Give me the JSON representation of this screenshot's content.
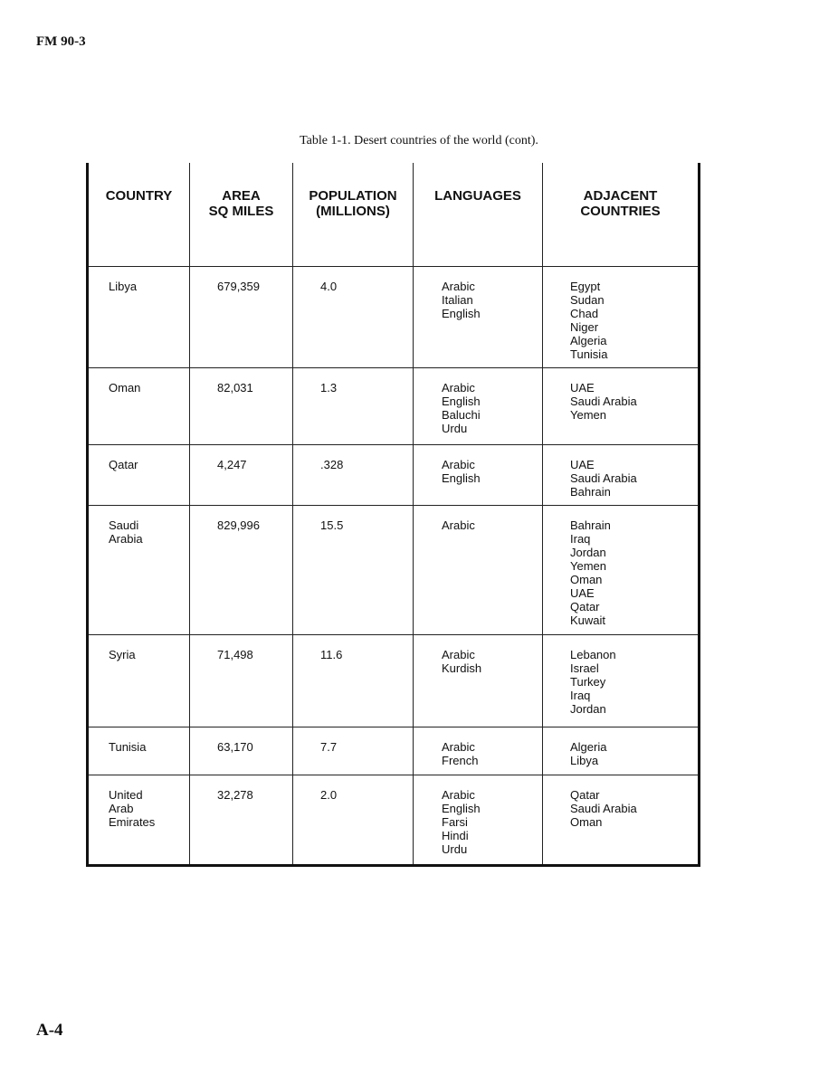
{
  "header": {
    "doc_id": "FM 90-3"
  },
  "caption": "Table 1-1. Desert countries of the world (cont).",
  "columns": [
    "COUNTRY",
    "AREA\nSQ MILES",
    "POPULATION\n(MILLIONS)",
    "LANGUAGES",
    "ADJACENT\nCOUNTRIES"
  ],
  "rows": [
    {
      "country": [
        "Libya"
      ],
      "area": "679,359",
      "population": "4.0",
      "languages": [
        "Arabic",
        "Italian",
        "English"
      ],
      "adjacent": [
        "Egypt",
        "Sudan",
        "Chad",
        "Niger",
        "Algeria",
        "Tunisia"
      ]
    },
    {
      "country": [
        "Oman"
      ],
      "area": "82,031",
      "population": "1.3",
      "languages": [
        "Arabic",
        "English",
        "Baluchi",
        "Urdu"
      ],
      "adjacent": [
        "UAE",
        "Saudi Arabia",
        "Yemen"
      ]
    },
    {
      "country": [
        "Qatar"
      ],
      "area": "4,247",
      "population": ".328",
      "languages": [
        "Arabic",
        "English"
      ],
      "adjacent": [
        "UAE",
        "Saudi Arabia",
        "Bahrain"
      ]
    },
    {
      "country": [
        "Saudi",
        "Arabia"
      ],
      "area": "829,996",
      "population": "15.5",
      "languages": [
        "Arabic"
      ],
      "adjacent": [
        "Bahrain",
        "Iraq",
        "Jordan",
        "Yemen",
        "Oman",
        "UAE",
        "Qatar",
        "Kuwait"
      ]
    },
    {
      "country": [
        "Syria"
      ],
      "area": "71,498",
      "population": "11.6",
      "languages": [
        "Arabic",
        "Kurdish"
      ],
      "adjacent": [
        "Lebanon",
        "Israel",
        "Turkey",
        "Iraq",
        "Jordan"
      ]
    },
    {
      "country": [
        "Tunisia"
      ],
      "area": "63,170",
      "population": "7.7",
      "languages": [
        "Arabic",
        "French"
      ],
      "adjacent": [
        "Algeria",
        "Libya"
      ]
    },
    {
      "country": [
        "United",
        "Arab",
        "Emirates"
      ],
      "area": "32,278",
      "population": "2.0",
      "languages": [
        "Arabic",
        "English",
        "Farsi",
        "Hindi",
        "Urdu"
      ],
      "adjacent": [
        "Qatar",
        "Saudi Arabia",
        "Oman"
      ]
    }
  ],
  "footer": {
    "page_number": "A-4"
  }
}
